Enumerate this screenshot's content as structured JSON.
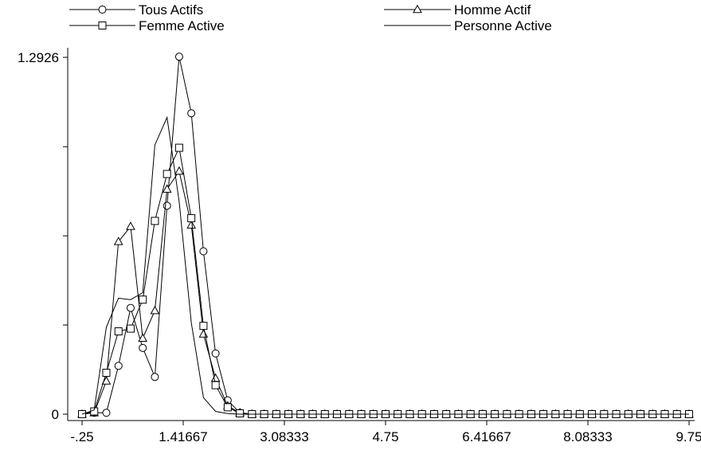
{
  "chart_data": {
    "type": "line",
    "title": "",
    "xlabel": "",
    "ylabel": "",
    "xlim": [
      -0.25,
      9.75
    ],
    "ylim": [
      0,
      1.2926
    ],
    "x_tick_labels": [
      "-.25",
      "1.41667",
      "3.08333",
      "4.75",
      "6.41667",
      "8.08333",
      "9.75"
    ],
    "x_ticks": [
      -0.25,
      1.41667,
      3.08333,
      4.75,
      6.41667,
      8.08333,
      9.75
    ],
    "y_tick_labels": [
      "0",
      "1.2926"
    ],
    "y_ticks": [
      0,
      0.323,
      0.646,
      0.969,
      1.2926
    ],
    "grid": false,
    "legend_position": "top",
    "x": [
      -0.25,
      -0.05,
      0.15,
      0.35,
      0.55,
      0.75,
      0.95,
      1.15,
      1.35,
      1.55,
      1.75,
      1.95,
      2.15,
      2.35,
      2.55,
      2.75,
      2.95,
      3.15,
      3.35,
      3.55,
      3.75,
      3.95,
      4.15,
      4.35,
      4.55,
      4.75,
      4.95,
      5.15,
      5.35,
      5.55,
      5.75,
      5.95,
      6.15,
      6.35,
      6.55,
      6.75,
      6.95,
      7.15,
      7.35,
      7.55,
      7.75,
      7.95,
      8.15,
      8.35,
      8.55,
      8.75,
      8.95,
      9.15,
      9.35,
      9.55,
      9.75
    ],
    "series": [
      {
        "name": "Tous Actifs",
        "marker": "circle",
        "values": [
          0,
          0.005,
          0.005,
          0.175,
          0.385,
          0.24,
          0.135,
          0.755,
          1.295,
          1.09,
          0.59,
          0.22,
          0.05,
          0.005,
          0,
          0,
          0,
          0,
          0,
          0,
          0,
          0,
          0,
          0,
          0,
          0,
          0,
          0,
          0,
          0,
          0,
          0,
          0,
          0,
          0,
          0,
          0,
          0,
          0,
          0,
          0,
          0,
          0,
          0,
          0,
          0,
          0,
          0,
          0,
          0,
          0
        ]
      },
      {
        "name": "Homme Actif",
        "marker": "triangle",
        "values": [
          0,
          0.005,
          0.12,
          0.625,
          0.68,
          0.275,
          0.375,
          0.815,
          0.88,
          0.685,
          0.29,
          0.13,
          0.03,
          0.005,
          0,
          0,
          0,
          0,
          0,
          0,
          0,
          0,
          0,
          0,
          0,
          0,
          0,
          0,
          0,
          0,
          0,
          0,
          0,
          0,
          0,
          0,
          0,
          0,
          0,
          0,
          0,
          0,
          0,
          0,
          0,
          0,
          0,
          0,
          0,
          0,
          0
        ]
      },
      {
        "name": "Femme Active",
        "marker": "square",
        "values": [
          0,
          0.01,
          0.15,
          0.3,
          0.31,
          0.415,
          0.7,
          0.87,
          0.965,
          0.71,
          0.32,
          0.105,
          0.025,
          0.003,
          0,
          0,
          0,
          0,
          0,
          0,
          0,
          0,
          0,
          0,
          0,
          0,
          0,
          0,
          0,
          0,
          0,
          0,
          0,
          0,
          0,
          0,
          0,
          0,
          0,
          0,
          0,
          0,
          0,
          0,
          0,
          0,
          0,
          0,
          0,
          0,
          0
        ]
      },
      {
        "name": "Personne Active",
        "marker": "none",
        "values": [
          0,
          0.015,
          0.315,
          0.42,
          0.415,
          0.44,
          0.975,
          1.075,
          0.77,
          0.33,
          0.06,
          0.01,
          0.002,
          0,
          0,
          0,
          0,
          0,
          0,
          0,
          0,
          0,
          0,
          0,
          0,
          0,
          0,
          0,
          0,
          0,
          0,
          0,
          0,
          0,
          0,
          0,
          0,
          0,
          0,
          0,
          0,
          0,
          0,
          0,
          0,
          0,
          0,
          0,
          0,
          0,
          0
        ]
      }
    ]
  }
}
